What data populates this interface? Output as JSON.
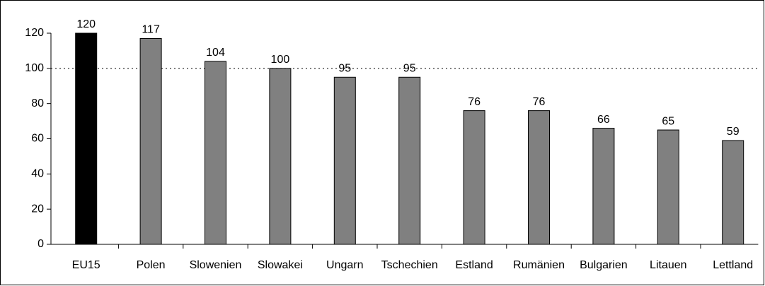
{
  "chart_data": {
    "type": "bar",
    "categories": [
      "EU15",
      "Polen",
      "Slowenien",
      "Slowakei",
      "Ungarn",
      "Tschechien",
      "Estland",
      "Rumänien",
      "Bulgarien",
      "Litauen",
      "Lettland"
    ],
    "values": [
      120,
      117,
      104,
      100,
      95,
      95,
      76,
      76,
      66,
      65,
      59
    ],
    "colors": [
      "#000000",
      "#808080",
      "#808080",
      "#808080",
      "#808080",
      "#808080",
      "#808080",
      "#808080",
      "#808080",
      "#808080",
      "#808080"
    ],
    "ylim": [
      0,
      120
    ],
    "yticks": [
      0,
      20,
      40,
      60,
      80,
      100,
      120
    ],
    "reference_line": 100,
    "grid": false
  }
}
